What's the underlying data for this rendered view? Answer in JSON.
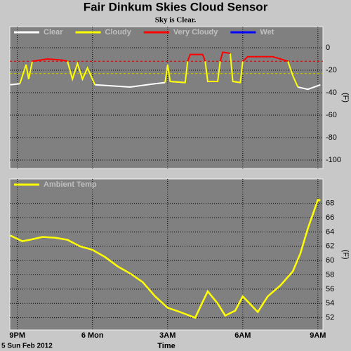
{
  "title": "Fair Dinkum Skies Cloud Sensor",
  "subtitle": "Sky is Clear.",
  "chart_data": [
    {
      "type": "line",
      "y_label": "(F)",
      "ylim": [
        -107.5,
        18.75
      ],
      "yticks": [
        0,
        -20,
        -40,
        -60,
        -80,
        -100
      ],
      "xlim": [
        -0.3,
        12.2
      ],
      "xticks": [
        0,
        3,
        6,
        9,
        12
      ],
      "grid": true,
      "thresholds": [
        {
          "value": -12,
          "color": "#cc0000"
        },
        {
          "value": -23,
          "color": "#cccc00"
        }
      ],
      "x": [
        -0.28,
        0.1,
        0.35,
        0.45,
        0.6,
        1.2,
        1.8,
        2.0,
        2.2,
        2.4,
        2.6,
        2.8,
        3.0,
        3.1,
        4.5,
        5.5,
        5.9,
        6.0,
        6.1,
        6.7,
        6.8,
        6.9,
        7.4,
        7.5,
        7.6,
        8.0,
        8.1,
        8.2,
        8.5,
        8.6,
        8.9,
        9.0,
        9.2,
        10.2,
        10.8,
        11.0,
        11.2,
        11.6,
        12.1
      ],
      "series": [
        {
          "name": "Clear",
          "color": "#ffffff",
          "values": [
            -33,
            -32,
            null,
            null,
            null,
            null,
            null,
            null,
            null,
            null,
            null,
            null,
            null,
            -33,
            -35,
            -32,
            -31,
            null,
            -30,
            -31,
            null,
            null,
            null,
            null,
            -30,
            -30,
            null,
            null,
            null,
            -30,
            -31,
            null,
            null,
            null,
            null,
            null,
            -35,
            -37,
            -33
          ]
        },
        {
          "name": "Cloudy",
          "color": "#ffff00",
          "values": [
            null,
            -32,
            -15,
            -28,
            -12,
            null,
            null,
            -12,
            -28,
            -14,
            -28,
            -18,
            -28,
            -33,
            null,
            null,
            -31,
            -15,
            -30,
            -31,
            -12,
            null,
            null,
            -12,
            -30,
            -30,
            -12,
            null,
            -5,
            -30,
            -31,
            -12,
            null,
            null,
            -12,
            -25,
            -35,
            null,
            null
          ]
        },
        {
          "name": "Very Cloudy",
          "color": "#ff0000",
          "values": [
            null,
            null,
            null,
            null,
            -12,
            -10,
            -11,
            -12,
            null,
            null,
            null,
            null,
            null,
            null,
            null,
            null,
            null,
            null,
            null,
            null,
            -12,
            -6,
            -6,
            -12,
            null,
            null,
            -12,
            -4,
            -5,
            null,
            null,
            -12,
            -8,
            -8,
            -12,
            null,
            null,
            null,
            null
          ]
        },
        {
          "name": "Wet",
          "color": "#0000ff",
          "values": [
            null,
            null,
            null,
            null,
            null,
            null,
            null,
            null,
            null,
            null,
            null,
            null,
            null,
            null,
            null,
            null,
            null,
            null,
            null,
            null,
            null,
            null,
            null,
            null,
            null,
            null,
            null,
            null,
            null,
            null,
            null,
            null,
            null,
            null,
            null,
            null,
            null,
            null,
            null
          ]
        }
      ]
    },
    {
      "type": "line",
      "y_label": "(F)",
      "ylim": [
        50.3,
        71.4
      ],
      "yticks": [
        52,
        54,
        56,
        58,
        60,
        62,
        64,
        66,
        68
      ],
      "xlim": [
        -0.3,
        12.2
      ],
      "xticks": [
        {
          "value": 0,
          "label": "9PM"
        },
        {
          "value": 3,
          "label": "6 Mon"
        },
        {
          "value": 6,
          "label": "3AM"
        },
        {
          "value": 9,
          "label": "6AM"
        },
        {
          "value": 12,
          "label": "9AM"
        }
      ],
      "grid": true,
      "x_label": "Time",
      "date": "5 Sun Feb 2012",
      "x": [
        -0.28,
        0.2,
        0.5,
        1,
        1.5,
        2,
        2.5,
        3,
        3.5,
        4,
        4.5,
        5,
        5.5,
        6,
        6.5,
        7.1,
        7.6,
        8,
        8.3,
        8.7,
        9,
        9.6,
        10,
        10.5,
        11,
        11.3,
        11.6,
        12,
        12.1
      ],
      "series": [
        {
          "name": "Ambient Temp",
          "color": "#ffff00",
          "values": [
            63.5,
            62.7,
            62.9,
            63.3,
            63.2,
            62.9,
            62,
            61.5,
            60.5,
            59.2,
            58.2,
            57,
            55,
            53.4,
            52.8,
            52,
            55.7,
            54,
            52.3,
            53,
            55,
            52.8,
            55,
            56.5,
            58.5,
            61,
            64.5,
            68.5,
            68.4
          ]
        }
      ]
    }
  ]
}
